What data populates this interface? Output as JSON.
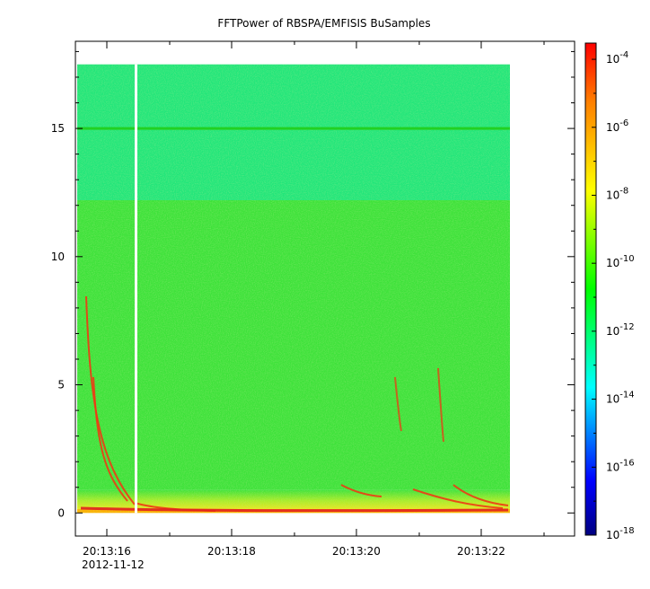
{
  "chart_data": {
    "type": "heatmap",
    "title": "FFTPower of RBSPA/EMFISIS  BuSamples",
    "xlabel": "",
    "ylabel": "",
    "x_ticks": [
      "20:13:16",
      "20:13:18",
      "20:13:20",
      "20:13:22"
    ],
    "x_date_label": "2012-11-12",
    "y_ticks": [
      "0",
      "5",
      "10",
      "15"
    ],
    "ylim": [
      -0.9,
      18.4
    ],
    "data_extent_y": [
      0,
      17.5
    ],
    "colorbar": {
      "scale": "log",
      "range": [
        "1e-18",
        "3e-4"
      ],
      "ticks": [
        {
          "base": "10",
          "exp": "-4"
        },
        {
          "base": "10",
          "exp": "-6"
        },
        {
          "base": "10",
          "exp": "-8"
        },
        {
          "base": "10",
          "exp": "-10"
        },
        {
          "base": "10",
          "exp": "-12"
        },
        {
          "base": "10",
          "exp": "-14"
        },
        {
          "base": "10",
          "exp": "-16"
        },
        {
          "base": "10",
          "exp": "-18"
        }
      ]
    },
    "colors": {
      "upper_band": "#22e67a",
      "mid_band": "#3ee23a",
      "low_band": "#d6ee20",
      "near_zero": "#ffb000",
      "line_15": "#22d022",
      "strong": "#e02020",
      "gap": "#ffffff"
    },
    "grid": false,
    "legend": "colorbar-right"
  }
}
